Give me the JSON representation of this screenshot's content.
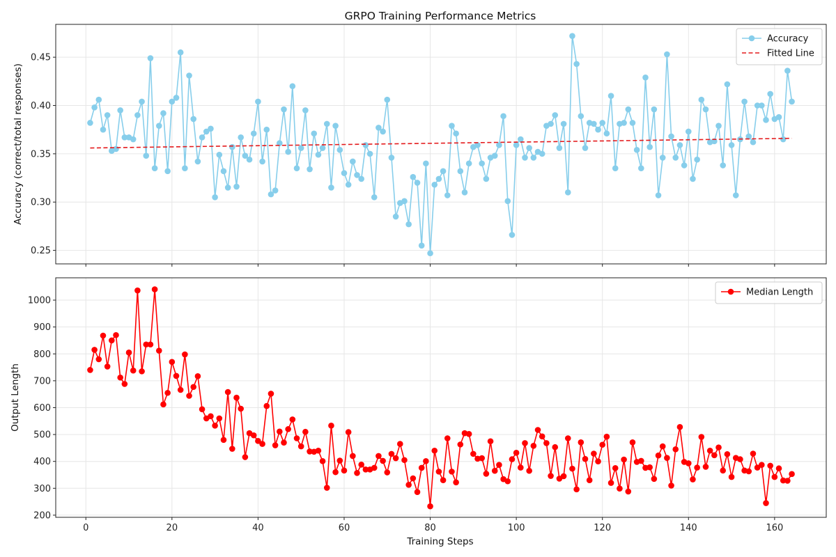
{
  "figure": {
    "title": "GRPO Training Performance Metrics",
    "xlabel": "Training Steps"
  },
  "chart_data": [
    {
      "type": "line",
      "title": "GRPO Training Performance Metrics",
      "xlabel": "",
      "ylabel": "Accuracy (correct/total responses)",
      "xlim": [
        -7,
        172
      ],
      "ylim": [
        0.236,
        0.484
      ],
      "xticks": [
        0,
        20,
        40,
        60,
        80,
        100,
        120,
        140,
        160
      ],
      "xtick_labels_visible": false,
      "yticks": [
        0.25,
        0.3,
        0.35,
        0.4,
        0.45
      ],
      "ytick_labels": [
        "0.25",
        "0.30",
        "0.35",
        "0.40",
        "0.45"
      ],
      "grid": true,
      "legend": "upper-right",
      "series": [
        {
          "name": "Accuracy",
          "color": "#87ceeb",
          "marker": "circle",
          "style": "solid",
          "x_start": 1,
          "x_step": 1,
          "values": [
            0.382,
            0.398,
            0.406,
            0.375,
            0.39,
            0.353,
            0.355,
            0.395,
            0.367,
            0.367,
            0.365,
            0.39,
            0.404,
            0.348,
            0.449,
            0.335,
            0.379,
            0.392,
            0.332,
            0.404,
            0.408,
            0.455,
            0.335,
            0.431,
            0.386,
            0.342,
            0.367,
            0.373,
            0.376,
            0.305,
            0.349,
            0.332,
            0.315,
            0.357,
            0.316,
            0.367,
            0.348,
            0.344,
            0.371,
            0.404,
            0.342,
            0.375,
            0.308,
            0.312,
            0.361,
            0.396,
            0.352,
            0.42,
            0.335,
            0.356,
            0.395,
            0.334,
            0.371,
            0.349,
            0.356,
            0.381,
            0.315,
            0.379,
            0.354,
            0.33,
            0.318,
            0.342,
            0.328,
            0.324,
            0.359,
            0.35,
            0.305,
            0.377,
            0.373,
            0.406,
            0.346,
            0.285,
            0.299,
            0.301,
            0.277,
            0.326,
            0.32,
            0.255,
            0.34,
            0.247,
            0.318,
            0.324,
            0.332,
            0.307,
            0.379,
            0.371,
            0.332,
            0.31,
            0.34,
            0.357,
            0.359,
            0.34,
            0.324,
            0.346,
            0.348,
            0.359,
            0.389,
            0.301,
            0.266,
            0.359,
            0.365,
            0.346,
            0.356,
            0.346,
            0.352,
            0.35,
            0.379,
            0.381,
            0.39,
            0.356,
            0.381,
            0.31,
            0.472,
            0.443,
            0.389,
            0.356,
            0.382,
            0.381,
            0.375,
            0.382,
            0.371,
            0.41,
            0.335,
            0.381,
            0.382,
            0.396,
            0.382,
            0.354,
            0.335,
            0.429,
            0.357,
            0.396,
            0.307,
            0.346,
            0.453,
            0.368,
            0.346,
            0.359,
            0.338,
            0.373,
            0.324,
            0.344,
            0.406,
            0.396,
            0.362,
            0.363,
            0.379,
            0.338,
            0.422,
            0.359,
            0.307,
            0.365,
            0.404,
            0.368,
            0.362,
            0.4,
            0.4,
            0.385,
            0.412,
            0.386,
            0.388,
            0.365,
            0.436,
            0.404
          ]
        },
        {
          "name": "Fitted Line",
          "color": "#e41a1c",
          "marker": "none",
          "style": "dashed",
          "x": [
            1,
            164
          ],
          "values": [
            0.356,
            0.366
          ]
        }
      ]
    },
    {
      "type": "line",
      "title": "",
      "xlabel": "Training Steps",
      "ylabel": "Output Length",
      "xlim": [
        -7,
        172
      ],
      "ylim": [
        192,
        1083
      ],
      "xticks": [
        0,
        20,
        40,
        60,
        80,
        100,
        120,
        140,
        160
      ],
      "xtick_labels": [
        "0",
        "20",
        "40",
        "60",
        "80",
        "100",
        "120",
        "140",
        "160"
      ],
      "yticks": [
        200,
        300,
        400,
        500,
        600,
        700,
        800,
        900,
        1000
      ],
      "ytick_labels": [
        "200",
        "300",
        "400",
        "500",
        "600",
        "700",
        "800",
        "900",
        "1000"
      ],
      "grid": true,
      "legend": "upper-right",
      "series": [
        {
          "name": "Median Length",
          "color": "#ff0000",
          "marker": "circle",
          "style": "solid",
          "x_start": 1,
          "x_step": 1,
          "values": [
            740,
            815,
            780,
            868,
            753,
            850,
            870,
            712,
            688,
            805,
            738,
            1036,
            735,
            835,
            835,
            1040,
            812,
            612,
            655,
            770,
            718,
            666,
            798,
            644,
            677,
            717,
            594,
            560,
            568,
            533,
            560,
            480,
            658,
            447,
            637,
            596,
            416,
            505,
            497,
            476,
            465,
            606,
            652,
            460,
            511,
            470,
            520,
            556,
            486,
            456,
            510,
            437,
            436,
            440,
            401,
            302,
            533,
            360,
            403,
            366,
            509,
            420,
            357,
            388,
            370,
            370,
            376,
            420,
            402,
            359,
            428,
            412,
            465,
            405,
            313,
            337,
            286,
            376,
            401,
            233,
            440,
            362,
            330,
            486,
            362,
            322,
            463,
            505,
            502,
            428,
            410,
            412,
            354,
            475,
            365,
            387,
            334,
            326,
            408,
            432,
            377,
            468,
            365,
            458,
            517,
            493,
            468,
            346,
            453,
            336,
            345,
            486,
            373,
            296,
            471,
            409,
            330,
            429,
            400,
            462,
            492,
            320,
            375,
            299,
            407,
            288,
            471,
            398,
            402,
            376,
            378,
            335,
            422,
            456,
            413,
            310,
            445,
            528,
            398,
            393,
            333,
            377,
            491,
            380,
            440,
            423,
            452,
            366,
            427,
            342,
            413,
            408,
            366,
            363,
            429,
            377,
            387,
            245,
            384,
            342,
            374,
            329,
            328,
            353
          ]
        }
      ]
    }
  ]
}
